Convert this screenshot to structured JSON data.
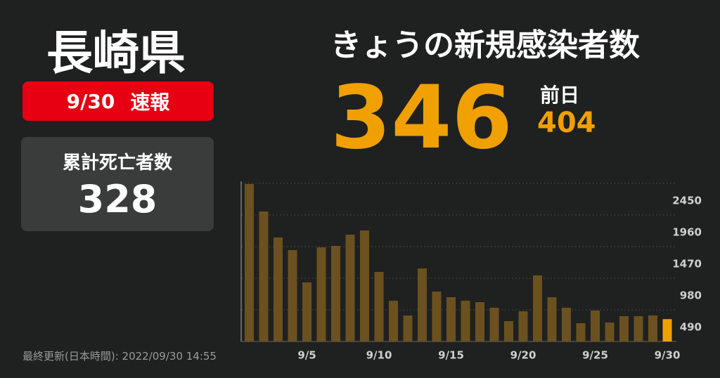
{
  "header": {
    "prefecture": "長崎県",
    "date": "9/30",
    "flash": "速報",
    "headline": "きょうの新規感染者数",
    "previous_day_label": "前日"
  },
  "deaths_panel": {
    "label": "累計死亡者数",
    "value": "328"
  },
  "footer": "最終更新(日本時間): 2022/09/30 14:55",
  "chart_data": {
    "type": "bar",
    "categories": [
      null,
      null,
      null,
      null,
      "9/5",
      null,
      null,
      null,
      null,
      "9/10",
      null,
      null,
      null,
      null,
      "9/15",
      null,
      null,
      null,
      null,
      "9/20",
      null,
      null,
      null,
      null,
      "9/25",
      null,
      null,
      null,
      null,
      "9/30"
    ],
    "values": [
      2440,
      2015,
      1612,
      1416,
      915,
      1459,
      1481,
      1655,
      1720,
      1078,
      632,
      403,
      1132,
      773,
      686,
      632,
      610,
      523,
      316,
      468,
      1024,
      686,
      523,
      283,
      479,
      294,
      392,
      392,
      404,
      346
    ],
    "color": "#6b5120",
    "last_color": "#f0a000",
    "ylim": [
      0,
      2450
    ],
    "yticks": [
      490,
      980,
      1470,
      1960,
      2450
    ],
    "grid": true
  }
}
